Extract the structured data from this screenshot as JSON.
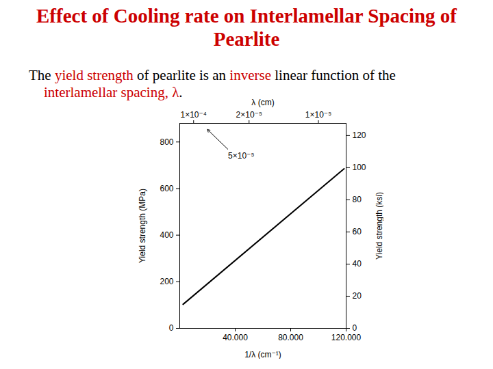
{
  "chart_data": {
    "type": "line",
    "title": "Effect of Cooling rate on Interlamellar Spacing of Pearlite",
    "subtitle": [
      {
        "text": "The ",
        "color": "#000000"
      },
      {
        "text": "yield strength",
        "color": "#cc0000"
      },
      {
        "text": " of pearlite is an ",
        "color": "#000000"
      },
      {
        "text": "inverse",
        "color": "#cc0000"
      },
      {
        "text": " linear function of the ",
        "color": "#000000"
      },
      {
        "text": "interlamellar spacing, λ",
        "color": "#cc0000"
      },
      {
        "text": ".",
        "color": "#000000"
      }
    ],
    "x": [
      2400,
      118500
    ],
    "values": [
      103,
      685
    ],
    "color": "#000000",
    "xlabel": "1/λ (cm⁻¹)",
    "ylabel": "Yield strength (MPa)",
    "x2label": "λ (cm)",
    "y2label": "Yield strength (ksi)",
    "xlim": [
      0,
      120000
    ],
    "xticks": [
      {
        "value": 40000,
        "label": "40.000"
      },
      {
        "value": 80000,
        "label": "80.000"
      },
      {
        "value": 120000,
        "label": "120.000"
      }
    ],
    "x2ticks": [
      {
        "value": 10000,
        "label": "1×10⁻⁴"
      },
      {
        "value": 50000,
        "label": "2×10⁻⁵"
      },
      {
        "value": 100000,
        "label": "1×10⁻⁵"
      }
    ],
    "ylim": [
      0,
      880
    ],
    "yticks": [
      0,
      200,
      400,
      600,
      800
    ],
    "y2lim": [
      0,
      127.6
    ],
    "y2ticks": [
      0,
      20,
      40,
      60,
      80,
      100,
      120
    ],
    "annotations": [
      {
        "text": "5×10⁻⁵",
        "x": 20000
      }
    ]
  }
}
